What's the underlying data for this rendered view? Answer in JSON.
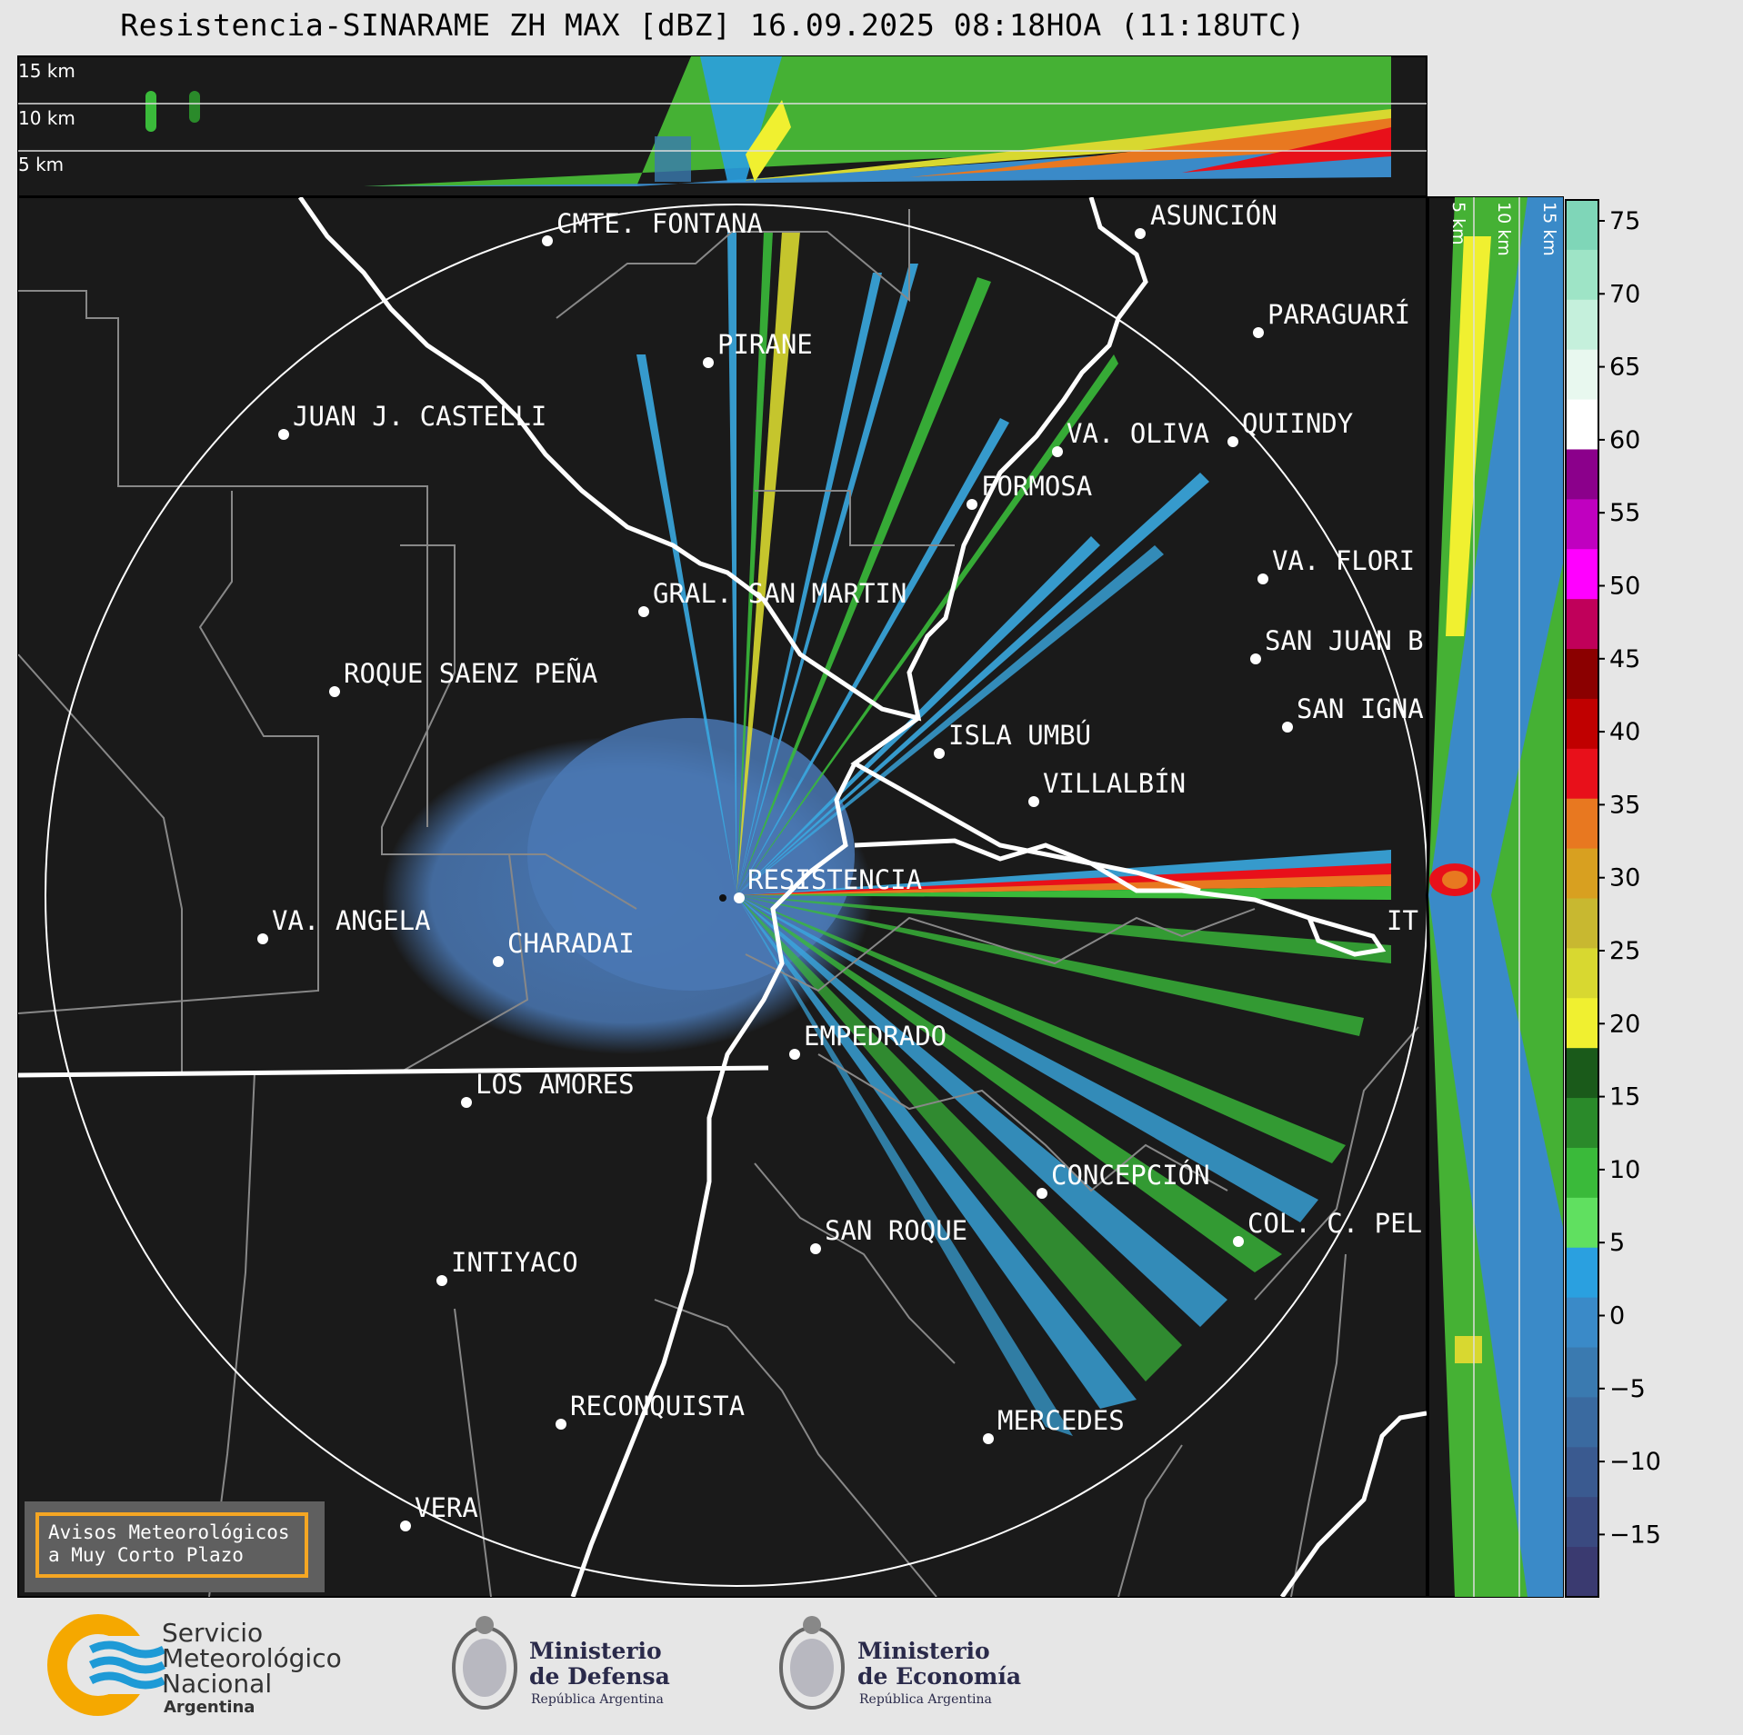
{
  "title": "Resistencia-SINARAME ZH MAX [dBZ] 16.09.2025 08:18HOA (11:18UTC)",
  "top_panel_heights": [
    "15 km",
    "10 km",
    "5 km"
  ],
  "side_panel_heights": [
    "5 km",
    "10 km",
    "15 km"
  ],
  "colorbar": {
    "ticks": [
      "75",
      "70",
      "65",
      "60",
      "55",
      "50",
      "45",
      "40",
      "35",
      "30",
      "25",
      "20",
      "15",
      "10",
      "5",
      "0",
      "−5",
      "−10",
      "−15"
    ],
    "colors": [
      "#7fd6b8",
      "#9ee4c6",
      "#c5f0dc",
      "#e8f8ef",
      "#ffffff",
      "#8b008b",
      "#c000c0",
      "#ff00ff",
      "#c0005a",
      "#8b0000",
      "#c00000",
      "#e8101a",
      "#e87820",
      "#d8a020",
      "#c8b830",
      "#d8d830",
      "#f0f030",
      "#1a5a1a",
      "#2a8a2a",
      "#3aba3a",
      "#60e060",
      "#2aa0e0",
      "#3a8ac8",
      "#3a7ab0",
      "#3a6aa0",
      "#3a5a90",
      "#3a4a80",
      "#3a3a70"
    ]
  },
  "cities": [
    {
      "name": "CMTE. FONTANA",
      "id": "cmte-fontana"
    },
    {
      "name": "ASUNCIÓN",
      "id": "asuncion"
    },
    {
      "name": "PARAGUARÍ",
      "id": "paraguari"
    },
    {
      "name": "PIRANE",
      "id": "pirane"
    },
    {
      "name": "JUAN J. CASTELLI",
      "id": "juan-j-castelli"
    },
    {
      "name": "VA. OLIVA",
      "id": "va-oliva"
    },
    {
      "name": "QUIINDY",
      "id": "quiindy"
    },
    {
      "name": "FORMOSA",
      "id": "formosa"
    },
    {
      "name": "VA. FLORI",
      "id": "va-florida"
    },
    {
      "name": "GRAL. SAN MARTIN",
      "id": "gral-san-martin"
    },
    {
      "name": "SAN JUAN B",
      "id": "san-juan-b"
    },
    {
      "name": "ROQUE SAENZ PEÑA",
      "id": "roque-saenz-pena"
    },
    {
      "name": "SAN IGNA",
      "id": "san-ignacio"
    },
    {
      "name": "ISLA UMBÚ",
      "id": "isla-umbu"
    },
    {
      "name": "VILLALBÍN",
      "id": "villalbin"
    },
    {
      "name": "RESISTENCIA",
      "id": "resistencia"
    },
    {
      "name": "VA. ANGELA",
      "id": "va-angela"
    },
    {
      "name": "IT",
      "id": "ituzaingo"
    },
    {
      "name": "CHARADAI",
      "id": "charadai"
    },
    {
      "name": "EMPEDRADO",
      "id": "empedrado"
    },
    {
      "name": "LOS AMORES",
      "id": "los-amores"
    },
    {
      "name": "CONCEPCIÓN",
      "id": "concepcion"
    },
    {
      "name": "COL. C. PEL",
      "id": "col-c-pel"
    },
    {
      "name": "SAN ROQUE",
      "id": "san-roque"
    },
    {
      "name": "INTIYACO",
      "id": "intiyaco"
    },
    {
      "name": "RECONQUISTA",
      "id": "reconquista"
    },
    {
      "name": "MERCEDES",
      "id": "mercedes"
    },
    {
      "name": "VERA",
      "id": "vera"
    }
  ],
  "aviso": {
    "line1": "Avisos Meteorológicos",
    "line2": "a Muy Corto Plazo"
  },
  "logos": {
    "smn": {
      "line1": "Servicio",
      "line2": "Meteorológico",
      "line3": "Nacional",
      "line4": "Argentina"
    },
    "defensa": {
      "line1": "Ministerio",
      "line2": "de Defensa",
      "line3": "República Argentina"
    },
    "economia": {
      "line1": "Ministerio",
      "line2": "de Economía",
      "line3": "República Argentina"
    }
  }
}
